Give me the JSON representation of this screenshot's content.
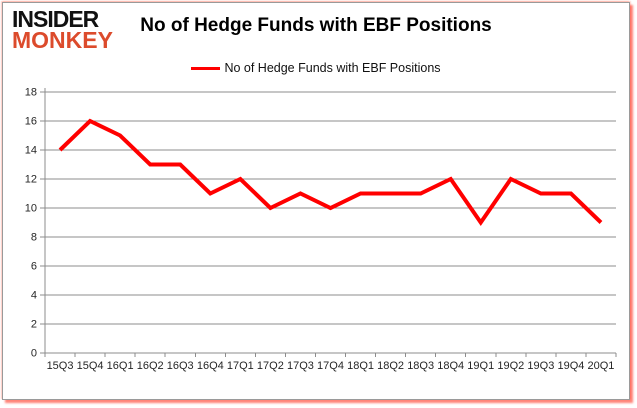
{
  "logo": {
    "line1": "INSIDER",
    "line2": "MONKEY"
  },
  "header": {
    "title": "No of Hedge Funds with EBF Positions"
  },
  "legend": {
    "label": "No of Hedge Funds with EBF Positions"
  },
  "colors": {
    "line": "#FF0000",
    "grid": "#8c8c8c",
    "axis": "#8c8c8c",
    "tick_label": "#262626",
    "logo_black": "#111111",
    "logo_red": "#DC4B2C",
    "frame_glow": "#FF1E0A"
  },
  "chart_data": {
    "type": "line",
    "title": "No of Hedge Funds with EBF Positions",
    "series_name": "No of Hedge Funds with EBF Positions",
    "categories": [
      "15Q3",
      "15Q4",
      "16Q1",
      "16Q2",
      "16Q3",
      "16Q4",
      "17Q1",
      "17Q2",
      "17Q3",
      "17Q4",
      "18Q1",
      "18Q2",
      "18Q3",
      "18Q4",
      "19Q1",
      "19Q2",
      "19Q3",
      "19Q4",
      "20Q1"
    ],
    "values": [
      14,
      16,
      15,
      13,
      13,
      11,
      12,
      10,
      11,
      10,
      11,
      11,
      11,
      12,
      9,
      12,
      11,
      11,
      9
    ],
    "xlabel": "",
    "ylabel": "",
    "ylim": [
      0,
      18
    ],
    "ytick_step": 2,
    "grid": true,
    "legend_position": "top-center"
  }
}
